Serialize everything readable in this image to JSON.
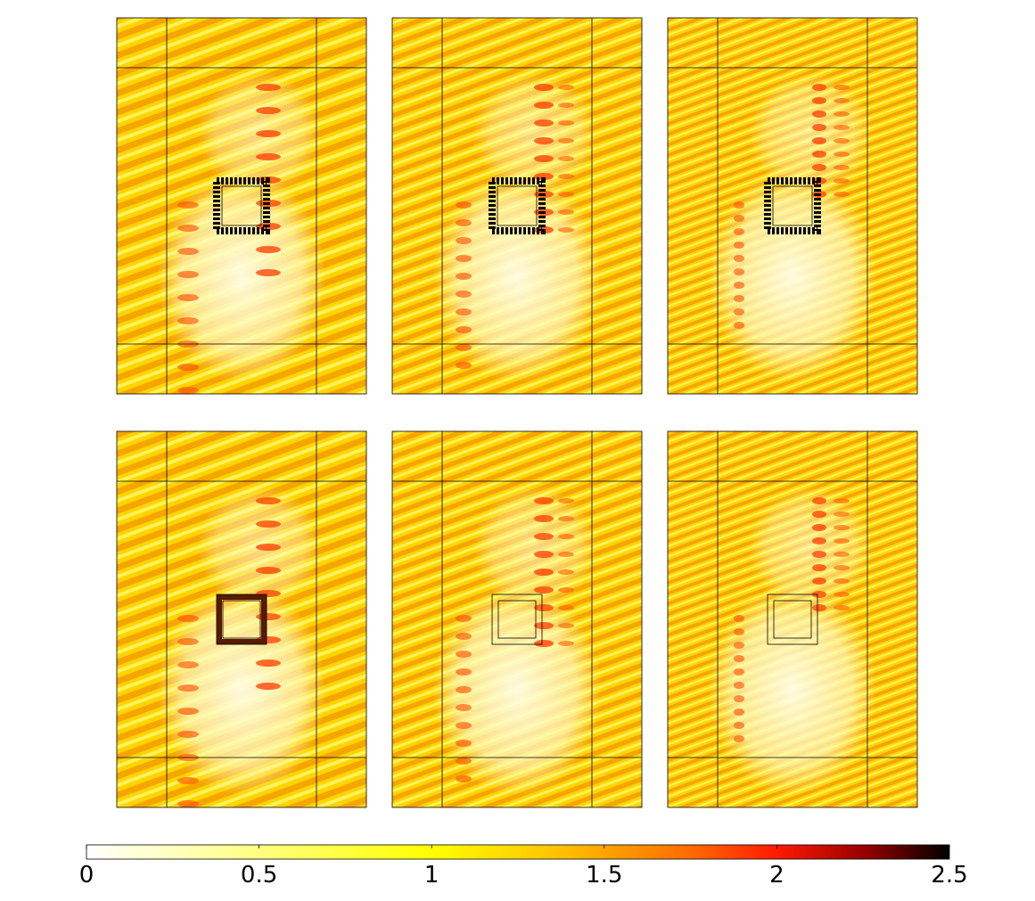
{
  "chart_data": {
    "type": "colorbar",
    "xlim": [
      0,
      2.5
    ],
    "xticks": [
      0,
      0.5,
      1,
      1.5,
      2,
      2.5
    ]
  }
}
